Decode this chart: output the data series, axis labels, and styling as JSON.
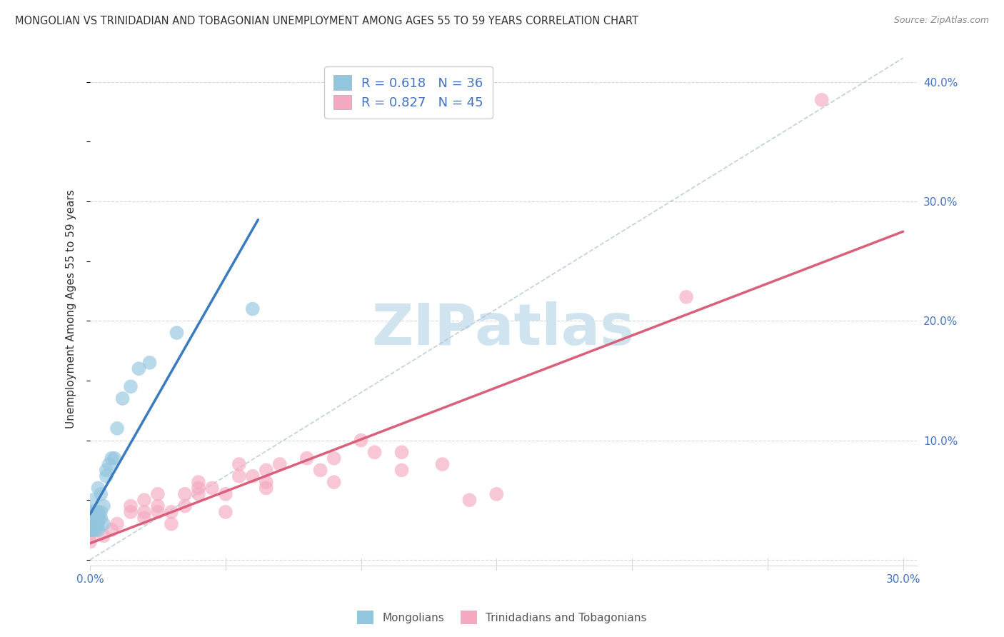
{
  "title": "MONGOLIAN VS TRINIDADIAN AND TOBAGONIAN UNEMPLOYMENT AMONG AGES 55 TO 59 YEARS CORRELATION CHART",
  "source": "Source: ZipAtlas.com",
  "ylabel": "Unemployment Among Ages 55 to 59 years",
  "xlim": [
    0.0,
    0.305
  ],
  "ylim": [
    -0.005,
    0.425
  ],
  "xticks": [
    0.0,
    0.05,
    0.1,
    0.15,
    0.2,
    0.25,
    0.3
  ],
  "yticks": [
    0.0,
    0.1,
    0.2,
    0.3,
    0.4
  ],
  "mongolian_R": 0.618,
  "mongolian_N": 36,
  "trinidadian_R": 0.827,
  "trinidadian_N": 45,
  "mongolian_color": "#92c5de",
  "trinidadian_color": "#f4a9c0",
  "mongolian_line_color": "#3a7bbf",
  "trinidadian_line_color": "#d9607a",
  "dashed_line_color": "#b0c4d8",
  "watermark": "ZIPatlas",
  "watermark_color": "#d0e4f0",
  "mongolian_x": [
    0.0,
    0.0,
    0.0,
    0.0,
    0.0,
    0.0,
    0.0,
    0.001,
    0.001,
    0.001,
    0.001,
    0.002,
    0.002,
    0.002,
    0.003,
    0.003,
    0.003,
    0.003,
    0.003,
    0.004,
    0.004,
    0.004,
    0.005,
    0.005,
    0.006,
    0.006,
    0.007,
    0.008,
    0.009,
    0.01,
    0.012,
    0.015,
    0.018,
    0.022,
    0.032,
    0.06
  ],
  "mongolian_y": [
    0.025,
    0.025,
    0.03,
    0.03,
    0.035,
    0.04,
    0.04,
    0.025,
    0.035,
    0.04,
    0.05,
    0.025,
    0.03,
    0.04,
    0.025,
    0.03,
    0.035,
    0.04,
    0.06,
    0.035,
    0.04,
    0.055,
    0.03,
    0.045,
    0.07,
    0.075,
    0.08,
    0.085,
    0.085,
    0.11,
    0.135,
    0.145,
    0.16,
    0.165,
    0.19,
    0.21
  ],
  "trinidadian_x": [
    0.0,
    0.0,
    0.0,
    0.0,
    0.005,
    0.008,
    0.01,
    0.015,
    0.015,
    0.02,
    0.02,
    0.02,
    0.025,
    0.025,
    0.025,
    0.03,
    0.03,
    0.035,
    0.035,
    0.04,
    0.04,
    0.04,
    0.045,
    0.05,
    0.05,
    0.055,
    0.055,
    0.06,
    0.065,
    0.065,
    0.065,
    0.07,
    0.08,
    0.085,
    0.09,
    0.09,
    0.1,
    0.105,
    0.115,
    0.115,
    0.13,
    0.14,
    0.15,
    0.22,
    0.27
  ],
  "trinidadian_y": [
    0.015,
    0.02,
    0.025,
    0.03,
    0.02,
    0.025,
    0.03,
    0.04,
    0.045,
    0.035,
    0.04,
    0.05,
    0.04,
    0.045,
    0.055,
    0.03,
    0.04,
    0.045,
    0.055,
    0.055,
    0.06,
    0.065,
    0.06,
    0.04,
    0.055,
    0.07,
    0.08,
    0.07,
    0.06,
    0.065,
    0.075,
    0.08,
    0.085,
    0.075,
    0.065,
    0.085,
    0.1,
    0.09,
    0.075,
    0.09,
    0.08,
    0.05,
    0.055,
    0.22,
    0.385
  ],
  "bg_color": "#ffffff",
  "grid_color": "#d8d8d8",
  "tick_color": "#4472c4",
  "ylabel_color": "#333333",
  "title_color": "#333333",
  "source_color": "#888888",
  "legend_text_color": "#4472c4",
  "bottom_legend_color": "#555555"
}
